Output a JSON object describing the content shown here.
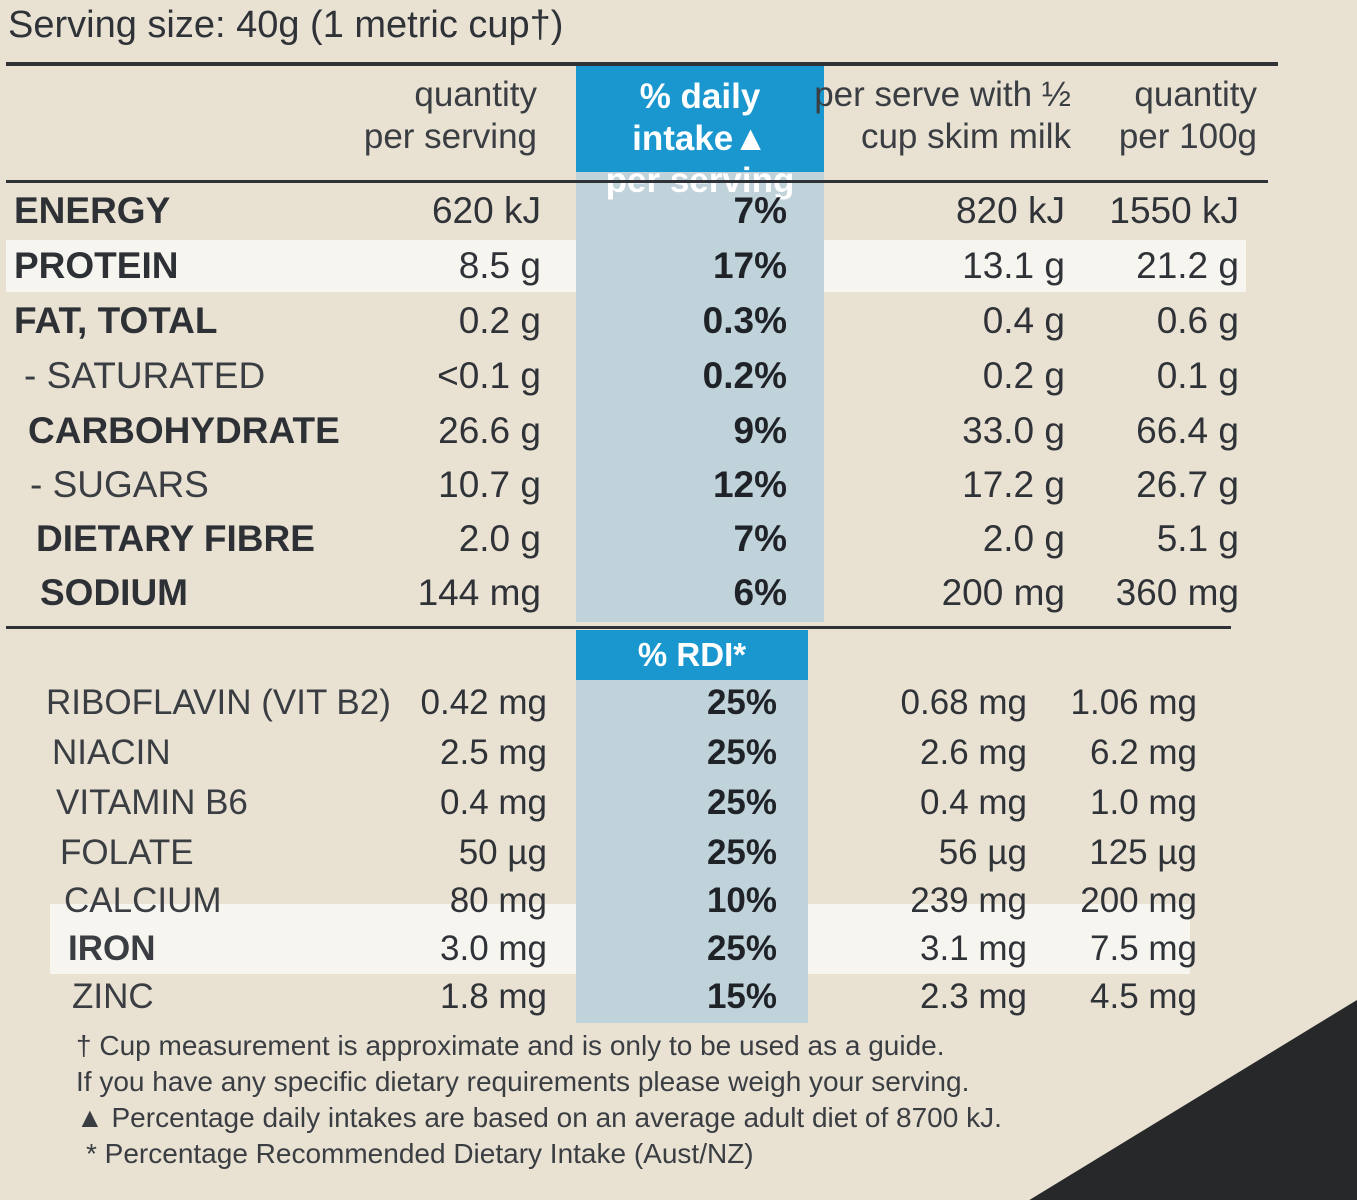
{
  "serving_size": "Serving size: 40g (1 metric cup†)",
  "headers": {
    "qty_serving_1": "quantity",
    "qty_serving_2": "per serving",
    "daily_intake_1": "% daily intake▲",
    "daily_intake_2": "per serving",
    "with_milk_1": "per serve with ½",
    "with_milk_2": "cup skim milk",
    "qty_100g_1": "quantity",
    "qty_100g_2": "per 100g",
    "rdi": "% RDI*"
  },
  "nutrients": [
    {
      "name": "ENERGY",
      "per_serving": "620 kJ",
      "daily_intake": "7%",
      "with_milk": "820 kJ",
      "per_100g": "1550 kJ"
    },
    {
      "name": "PROTEIN",
      "per_serving": "8.5 g",
      "daily_intake": "17%",
      "with_milk": "13.1 g",
      "per_100g": "21.2 g"
    },
    {
      "name": "FAT, TOTAL",
      "per_serving": "0.2 g",
      "daily_intake": "0.3%",
      "with_milk": "0.4 g",
      "per_100g": "0.6 g"
    },
    {
      "name": "- SATURATED",
      "per_serving": "<0.1 g",
      "daily_intake": "0.2%",
      "with_milk": "0.2 g",
      "per_100g": "0.1 g"
    },
    {
      "name": "CARBOHYDRATE",
      "per_serving": "26.6 g",
      "daily_intake": "9%",
      "with_milk": "33.0 g",
      "per_100g": "66.4 g"
    },
    {
      "name": "- SUGARS",
      "per_serving": "10.7 g",
      "daily_intake": "12%",
      "with_milk": "17.2 g",
      "per_100g": "26.7 g"
    },
    {
      "name": "DIETARY FIBRE",
      "per_serving": "2.0 g",
      "daily_intake": "7%",
      "with_milk": "2.0 g",
      "per_100g": "5.1 g"
    },
    {
      "name": "SODIUM",
      "per_serving": "144 mg",
      "daily_intake": "6%",
      "with_milk": "200 mg",
      "per_100g": "360 mg"
    }
  ],
  "vitamins": [
    {
      "name": "RIBOFLAVIN (VIT B2)",
      "per_serving": "0.42 mg",
      "rdi": "25%",
      "with_milk": "0.68 mg",
      "per_100g": "1.06 mg"
    },
    {
      "name": "NIACIN",
      "per_serving": "2.5 mg",
      "rdi": "25%",
      "with_milk": "2.6 mg",
      "per_100g": "6.2 mg"
    },
    {
      "name": "VITAMIN B6",
      "per_serving": "0.4 mg",
      "rdi": "25%",
      "with_milk": "0.4 mg",
      "per_100g": "1.0 mg"
    },
    {
      "name": "FOLATE",
      "per_serving": "50 µg",
      "rdi": "25%",
      "with_milk": "56 µg",
      "per_100g": "125 µg"
    },
    {
      "name": "CALCIUM",
      "per_serving": "80 mg",
      "rdi": "10%",
      "with_milk": "239 mg",
      "per_100g": "200 mg"
    },
    {
      "name": "IRON",
      "per_serving": "3.0 mg",
      "rdi": "25%",
      "with_milk": "3.1 mg",
      "per_100g": "7.5 mg"
    },
    {
      "name": "ZINC",
      "per_serving": "1.8 mg",
      "rdi": "15%",
      "with_milk": "2.3 mg",
      "per_100g": "4.5 mg"
    }
  ],
  "footnotes": [
    "† Cup measurement is approximate and is only to be used as a guide.",
    "If you have any specific dietary requirements please weigh your serving.",
    "▲ Percentage daily intakes are based on an average adult diet of 8700 kJ.",
    "* Percentage Recommended Dietary Intake (Aust/NZ)"
  ]
}
